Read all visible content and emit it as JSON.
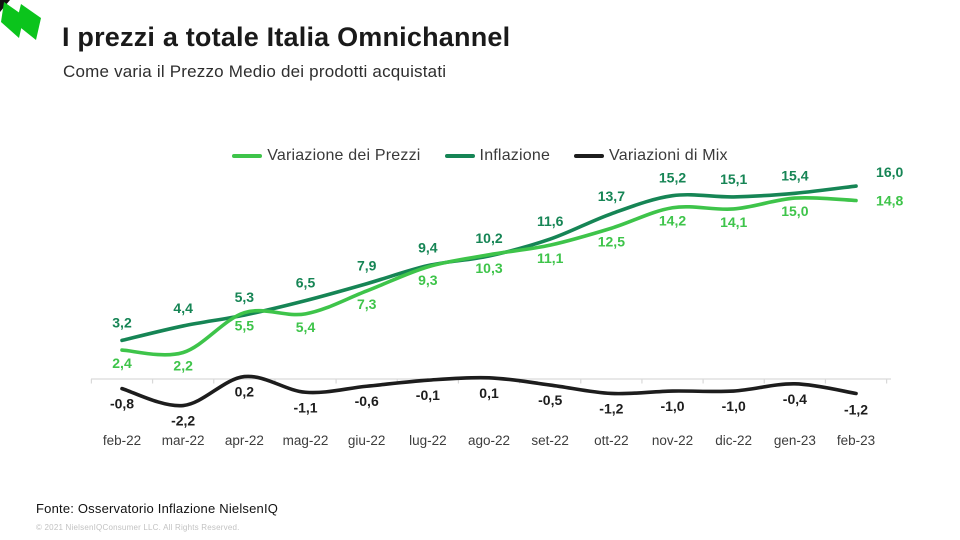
{
  "header": {
    "title": "I prezzi a totale Italia Omnichannel",
    "subtitle": "Come varia il Prezzo Medio dei prodotti acquistati"
  },
  "logo": {
    "name": "nielseniq-logo",
    "green": "#0bc41c",
    "black": "#111111"
  },
  "chart_data": {
    "type": "line",
    "title": "I prezzi a totale Italia Omnichannel",
    "xlabel": "",
    "ylabel": "",
    "grid": false,
    "legend_position": "top",
    "decimal_separator": ",",
    "value_labels": true,
    "categories": [
      "feb-22",
      "mar-22",
      "apr-22",
      "mag-22",
      "giu-22",
      "lug-22",
      "ago-22",
      "set-22",
      "ott-22",
      "nov-22",
      "dic-22",
      "gen-23",
      "feb-23"
    ],
    "series": [
      {
        "name": "Variazione dei Prezzi",
        "color": "#3ec44a",
        "values": [
          2.4,
          2.2,
          5.5,
          5.4,
          7.3,
          9.3,
          10.3,
          11.1,
          12.5,
          14.2,
          14.1,
          15.0,
          14.8
        ]
      },
      {
        "name": "Inflazione",
        "color": "#168555",
        "values": [
          3.2,
          4.4,
          5.3,
          6.5,
          7.9,
          9.4,
          10.2,
          11.6,
          13.7,
          15.2,
          15.1,
          15.4,
          16.0
        ]
      },
      {
        "name": "Variazioni di Mix",
        "color": "#1d1d1d",
        "values": [
          -0.8,
          -2.2,
          0.2,
          -1.1,
          -0.6,
          -0.1,
          0.1,
          -0.5,
          -1.2,
          -1.0,
          -1.0,
          -0.4,
          -1.2
        ]
      }
    ],
    "axis_color": "#d9d9d9"
  },
  "footer": {
    "source": "Fonte: Osservatorio Inflazione NielsenIQ",
    "copyright": "© 2021 NielsenIQConsumer LLC. All Rights Reserved."
  }
}
